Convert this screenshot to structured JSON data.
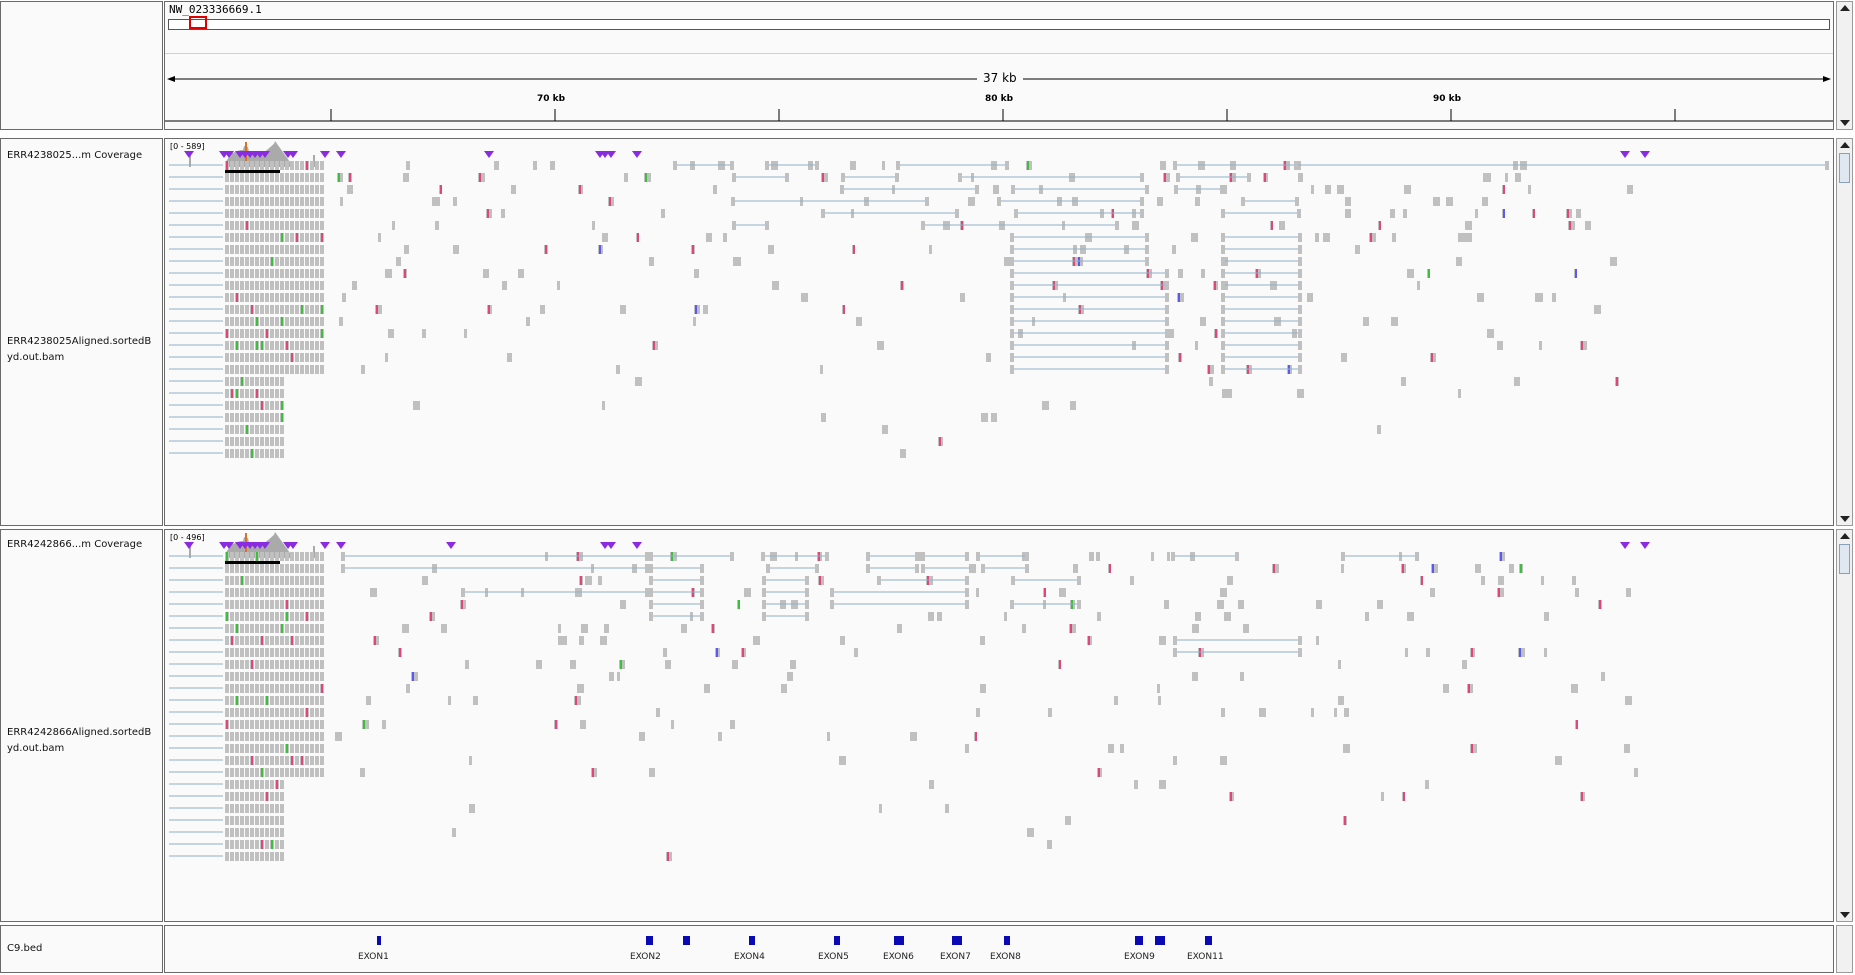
{
  "ruler": {
    "chromosome": "NW_023336669.1",
    "span_label": "37 kb",
    "ticks": [
      "70 kb",
      "80 kb",
      "90 kb"
    ]
  },
  "tracks": [
    {
      "coverage_label": "ERR4238025...m Coverage",
      "coverage_range": "[0 - 589]",
      "alignment_label": "ERR4238025Aligned.sortedByd.out.bam"
    },
    {
      "coverage_label": "ERR4242866...m Coverage",
      "coverage_range": "[0 - 496]",
      "alignment_label": "ERR4242866Aligned.sortedByd.out.bam"
    }
  ],
  "bed_track": {
    "label": "C9.bed",
    "exons": [
      "EXON1",
      "EXON2",
      "EXON4",
      "EXON5",
      "EXON6",
      "EXON7",
      "EXON8",
      "EXON9",
      "EXON11"
    ]
  },
  "colors": {
    "read": "#c0c0c0",
    "junction": "#8fb0c8",
    "insertion": "#8a2be2",
    "mismatch_red": "#e0457b",
    "mismatch_green": "#3cc03c",
    "mismatch_blue": "#5a5af0",
    "exon": "#0a0ab4",
    "coverage": "#aaaaaa"
  }
}
